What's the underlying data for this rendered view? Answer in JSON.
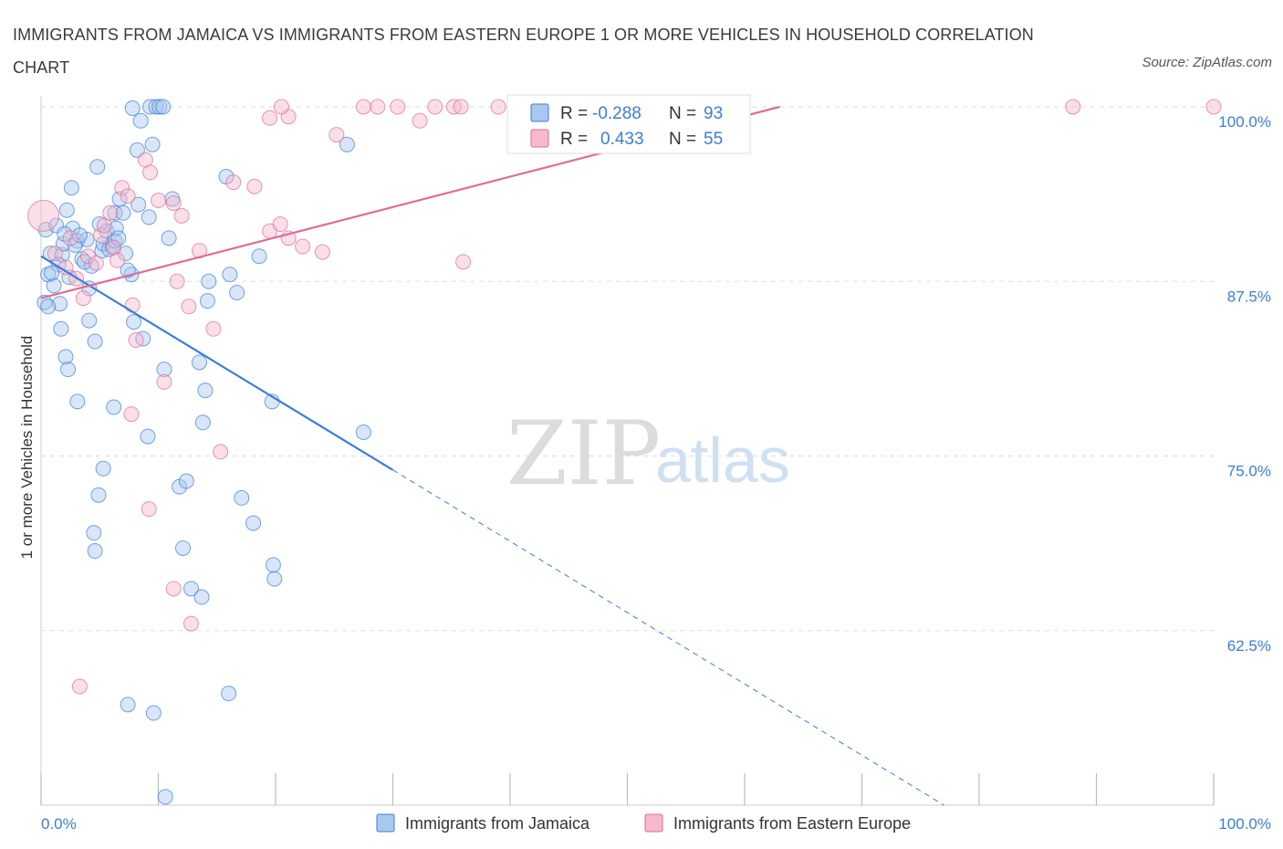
{
  "title": "IMMIGRANTS FROM JAMAICA VS IMMIGRANTS FROM EASTERN EUROPE 1 OR MORE VEHICLES IN HOUSEHOLD CORRELATION CHART",
  "source": "Source: ZipAtlas.com",
  "watermark": {
    "zip": "ZIP",
    "atlas": "atlas"
  },
  "colors": {
    "blue": "#3b7dd8",
    "blue_fill": "#a9c8f0",
    "pink": "#e06b96",
    "pink_fill": "#f5b9cc",
    "tick_text": "#3b7dd8",
    "grid": "#dddddd"
  },
  "stats_box": {
    "rows": [
      {
        "r_label": "R =",
        "r_value": "-0.288",
        "n_label": "N =",
        "n_value": "93",
        "color": "#a9c8f0"
      },
      {
        "r_label": "R =",
        "r_value": "0.433",
        "n_label": "N =",
        "n_value": "55",
        "color": "#f5b9cc"
      }
    ]
  },
  "chart_data": {
    "type": "scatter",
    "ylabel": "1 or more Vehicles in Household",
    "xlabel": "",
    "x_tick_labels": [
      {
        "value": 0,
        "label": "0.0%"
      },
      {
        "value": 100,
        "label": "100.0%"
      }
    ],
    "y_tick_labels": [
      {
        "value": 100,
        "label": "100.0%"
      },
      {
        "value": 87.5,
        "label": "87.5%"
      },
      {
        "value": 75,
        "label": "75.0%"
      },
      {
        "value": 62.5,
        "label": "62.5%"
      }
    ],
    "xlim": [
      0,
      100
    ],
    "ylim": [
      50,
      100
    ],
    "grid": true,
    "legend_position": "bottom",
    "series": [
      {
        "name": "Immigrants from Jamaica",
        "color": "#3b7dd8",
        "points": [
          [
            0.4,
            91.2
          ],
          [
            0.8,
            89.5
          ],
          [
            0.3,
            86.0
          ],
          [
            0.6,
            88.0
          ],
          [
            1.1,
            87.2
          ],
          [
            1.6,
            85.9
          ],
          [
            1.8,
            89.4
          ],
          [
            1.3,
            91.5
          ],
          [
            1.9,
            90.2
          ],
          [
            2.2,
            92.6
          ],
          [
            2.6,
            94.2
          ],
          [
            2.4,
            87.8
          ],
          [
            2.7,
            91.3
          ],
          [
            3.1,
            90.4
          ],
          [
            3.5,
            89.1
          ],
          [
            3.9,
            90.5
          ],
          [
            4.1,
            87.0
          ],
          [
            4.3,
            88.6
          ],
          [
            2.9,
            90.1
          ],
          [
            3.7,
            88.9
          ],
          [
            4.1,
            84.7
          ],
          [
            4.6,
            83.2
          ],
          [
            4.8,
            95.7
          ],
          [
            5.2,
            89.7
          ],
          [
            5.3,
            90.2
          ],
          [
            5.6,
            91.1
          ],
          [
            5.8,
            89.8
          ],
          [
            6.1,
            90.0
          ],
          [
            6.3,
            90.4
          ],
          [
            6.4,
            91.3
          ],
          [
            6.3,
            92.4
          ],
          [
            6.7,
            93.4
          ],
          [
            7.0,
            92.4
          ],
          [
            7.2,
            89.5
          ],
          [
            7.7,
            88.0
          ],
          [
            7.4,
            88.3
          ],
          [
            7.9,
            84.6
          ],
          [
            8.2,
            96.9
          ],
          [
            8.5,
            99.0
          ],
          [
            8.7,
            83.4
          ],
          [
            9.3,
            100
          ],
          [
            9.8,
            100
          ],
          [
            10.1,
            100
          ],
          [
            10.4,
            100
          ],
          [
            9.5,
            97.3
          ],
          [
            10.5,
            81.2
          ],
          [
            10.9,
            90.6
          ],
          [
            11.2,
            93.4
          ],
          [
            7.8,
            99.9
          ],
          [
            11.8,
            72.8
          ],
          [
            12.1,
            68.4
          ],
          [
            12.4,
            73.2
          ],
          [
            13.5,
            81.7
          ],
          [
            14.0,
            79.7
          ],
          [
            13.8,
            77.4
          ],
          [
            14.2,
            86.1
          ],
          [
            14.3,
            87.5
          ],
          [
            15.8,
            95.0
          ],
          [
            16.1,
            88.0
          ],
          [
            16.7,
            86.7
          ],
          [
            17.1,
            72.0
          ],
          [
            18.1,
            70.2
          ],
          [
            18.6,
            89.3
          ],
          [
            19.8,
            67.2
          ],
          [
            19.9,
            66.2
          ],
          [
            19.7,
            78.9
          ],
          [
            26.1,
            97.3
          ],
          [
            27.5,
            76.7
          ],
          [
            2.1,
            82.1
          ],
          [
            2.3,
            81.2
          ],
          [
            3.1,
            78.9
          ],
          [
            4.9,
            72.2
          ],
          [
            5.3,
            74.1
          ],
          [
            4.5,
            69.5
          ],
          [
            4.6,
            68.2
          ],
          [
            6.2,
            78.5
          ],
          [
            9.1,
            76.4
          ],
          [
            12.8,
            65.5
          ],
          [
            13.7,
            64.9
          ],
          [
            16.0,
            58.0
          ],
          [
            7.4,
            57.2
          ],
          [
            9.6,
            56.6
          ],
          [
            10.6,
            50.6
          ],
          [
            0.6,
            85.7
          ],
          [
            1.5,
            88.7
          ],
          [
            2.0,
            90.9
          ],
          [
            3.3,
            90.8
          ],
          [
            5.0,
            91.6
          ],
          [
            6.6,
            90.6
          ],
          [
            8.3,
            93.0
          ],
          [
            9.2,
            92.1
          ],
          [
            0.9,
            88.1
          ],
          [
            1.7,
            84.1
          ]
        ]
      },
      {
        "name": "Immigrants from Eastern Europe",
        "color": "#e06b96",
        "points": [
          [
            0.2,
            92.2
          ],
          [
            1.2,
            89.5
          ],
          [
            2.1,
            88.5
          ],
          [
            2.5,
            90.6
          ],
          [
            3.0,
            87.7
          ],
          [
            3.6,
            86.3
          ],
          [
            4.0,
            89.3
          ],
          [
            4.7,
            88.8
          ],
          [
            5.1,
            90.8
          ],
          [
            5.4,
            91.5
          ],
          [
            5.9,
            92.4
          ],
          [
            6.2,
            89.9
          ],
          [
            6.5,
            89.0
          ],
          [
            6.9,
            94.2
          ],
          [
            7.4,
            93.6
          ],
          [
            7.8,
            85.8
          ],
          [
            8.1,
            83.3
          ],
          [
            8.9,
            96.2
          ],
          [
            9.3,
            95.3
          ],
          [
            10.0,
            93.3
          ],
          [
            10.5,
            80.3
          ],
          [
            11.3,
            93.1
          ],
          [
            11.6,
            87.5
          ],
          [
            12.0,
            92.2
          ],
          [
            12.6,
            85.7
          ],
          [
            13.5,
            89.7
          ],
          [
            14.7,
            84.1
          ],
          [
            15.3,
            75.3
          ],
          [
            16.4,
            94.6
          ],
          [
            18.2,
            94.3
          ],
          [
            19.5,
            91.1
          ],
          [
            20.4,
            91.6
          ],
          [
            21.1,
            90.6
          ],
          [
            22.3,
            90.0
          ],
          [
            24.0,
            89.6
          ],
          [
            25.2,
            98.0
          ],
          [
            27.5,
            100
          ],
          [
            28.7,
            100
          ],
          [
            30.4,
            100
          ],
          [
            32.3,
            99.0
          ],
          [
            33.6,
            100
          ],
          [
            35.2,
            100
          ],
          [
            35.8,
            100
          ],
          [
            36.0,
            88.9
          ],
          [
            21.1,
            99.3
          ],
          [
            20.5,
            100
          ],
          [
            19.5,
            99.2
          ],
          [
            9.2,
            71.2
          ],
          [
            11.3,
            65.5
          ],
          [
            12.8,
            63.0
          ],
          [
            7.7,
            78.0
          ],
          [
            3.3,
            58.5
          ],
          [
            39.0,
            100
          ],
          [
            88.0,
            100
          ],
          [
            100.0,
            100
          ]
        ]
      }
    ],
    "trendlines": [
      {
        "series": "Immigrants from Jamaica",
        "x_start": 0,
        "y_start": 89.3,
        "x_solid_end": 30,
        "y_solid_end": 74.0,
        "x_dash_end": 77,
        "y_dash_end": 50
      },
      {
        "series": "Immigrants from Eastern Europe",
        "x_start": 0,
        "y_start": 86.3,
        "x_end": 63,
        "y_end": 100
      }
    ]
  },
  "legend": {
    "items": [
      {
        "label": "Immigrants from Jamaica",
        "color": "#a9c8f0"
      },
      {
        "label": "Immigrants from Eastern Europe",
        "color": "#f5b9cc"
      }
    ]
  }
}
